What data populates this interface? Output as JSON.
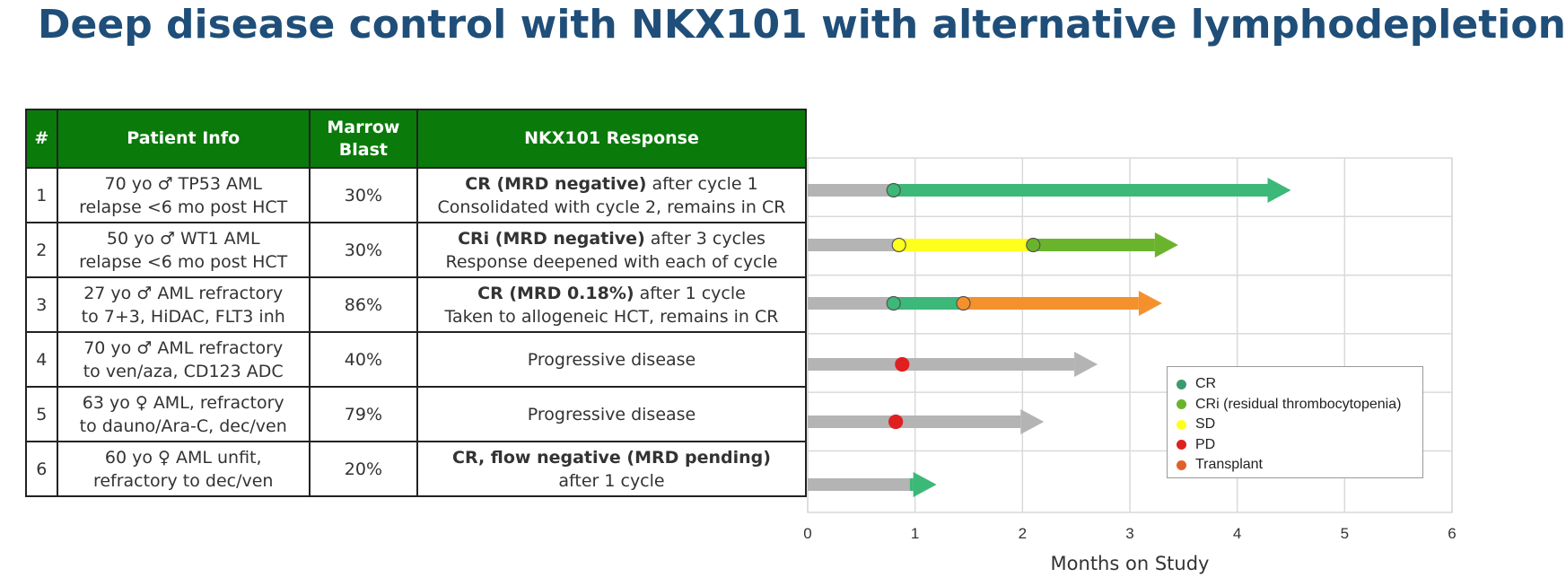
{
  "title": "Deep disease control with NKX101 with alternative lymphodepletion",
  "table": {
    "headers": {
      "num": "#",
      "info": "Patient Info",
      "blast_1": "Marrow",
      "blast_2": "Blast",
      "response": "NKX101 Response"
    },
    "rows": [
      {
        "num": "1",
        "info_1": "70 yo ♂ TP53 AML",
        "info_2": "relapse <6 mo post HCT",
        "blast": "30%",
        "resp_bold": "CR (MRD negative)",
        "resp_rest": " after cycle 1",
        "resp_2": "Consolidated with cycle 2, remains in CR"
      },
      {
        "num": "2",
        "info_1": "50 yo ♂ WT1 AML",
        "info_2": "relapse <6 mo post HCT",
        "blast": "30%",
        "resp_bold": "CRi (MRD negative)",
        "resp_rest": " after 3 cycles",
        "resp_2": "Response deepened with each of cycle"
      },
      {
        "num": "3",
        "info_1": "27 yo ♂ AML refractory",
        "info_2": "to 7+3, HiDAC, FLT3 inh",
        "blast": "86%",
        "resp_bold": "CR (MRD 0.18%)",
        "resp_rest": " after 1 cycle",
        "resp_2": "Taken to allogeneic HCT, remains in CR"
      },
      {
        "num": "4",
        "info_1": "70 yo ♂ AML refractory",
        "info_2": "to ven/aza, CD123 ADC",
        "blast": "40%",
        "resp_bold": "",
        "resp_rest": "Progressive disease",
        "resp_2": ""
      },
      {
        "num": "5",
        "info_1": "63 yo ♀ AML, refractory",
        "info_2": "to dauno/Ara-C, dec/ven",
        "blast": "79%",
        "resp_bold": "",
        "resp_rest": "Progressive disease",
        "resp_2": ""
      },
      {
        "num": "6",
        "info_1": "60 yo ♀ AML unfit,",
        "info_2": "refractory to dec/ven",
        "blast": "20%",
        "resp_bold": "CR, flow negative (MRD pending)",
        "resp_rest": "",
        "resp_2": "after 1 cycle"
      }
    ]
  },
  "chart_data": {
    "type": "swimmer",
    "xlabel": "Months on Study",
    "xlim": [
      0,
      6
    ],
    "xticks": [
      "0",
      "1",
      "2",
      "3",
      "4",
      "5",
      "6"
    ],
    "grid": true,
    "legend_position": "bottom-right",
    "colors": {
      "baseline": "#b4b4b4",
      "CR": "#3cb878",
      "CRi": "#6ab42d",
      "SD": "#ffff1e",
      "PD": "#e02020",
      "Transplant": "#f5912d"
    },
    "legend": [
      {
        "key": "CR",
        "label": "CR",
        "color": "#3c9b6e"
      },
      {
        "key": "CRi",
        "label": "CRi (residual thrombocytopenia)",
        "color": "#6ab42d"
      },
      {
        "key": "SD",
        "label": "SD",
        "color": "#ffff1e"
      },
      {
        "key": "PD",
        "label": "PD",
        "color": "#e02020"
      },
      {
        "key": "Transplant",
        "label": "Transplant",
        "color": "#e0602d"
      }
    ],
    "patients": [
      {
        "id": "1",
        "end": 4.5,
        "segments": [
          {
            "status": "baseline",
            "start": 0,
            "end": 0.8
          },
          {
            "status": "CR",
            "start": 0.8,
            "end": 4.5
          }
        ],
        "events": [
          {
            "status": "CR",
            "x": 0.8
          }
        ]
      },
      {
        "id": "2",
        "end": 3.45,
        "segments": [
          {
            "status": "baseline",
            "start": 0,
            "end": 0.85
          },
          {
            "status": "SD",
            "start": 0.85,
            "end": 2.1
          },
          {
            "status": "CRi",
            "start": 2.1,
            "end": 3.45
          }
        ],
        "events": [
          {
            "status": "SD",
            "x": 0.85
          },
          {
            "status": "CRi",
            "x": 2.1
          }
        ]
      },
      {
        "id": "3",
        "end": 3.3,
        "segments": [
          {
            "status": "baseline",
            "start": 0,
            "end": 0.8
          },
          {
            "status": "CR",
            "start": 0.8,
            "end": 1.45
          },
          {
            "status": "Transplant",
            "start": 1.45,
            "end": 3.3
          }
        ],
        "events": [
          {
            "status": "CR",
            "x": 0.8
          },
          {
            "status": "Transplant",
            "x": 1.45
          }
        ]
      },
      {
        "id": "4",
        "end": 2.7,
        "segments": [
          {
            "status": "baseline",
            "start": 0,
            "end": 2.7
          }
        ],
        "events": [
          {
            "status": "PD",
            "x": 0.88
          }
        ]
      },
      {
        "id": "5",
        "end": 2.2,
        "segments": [
          {
            "status": "baseline",
            "start": 0,
            "end": 2.2
          }
        ],
        "events": [
          {
            "status": "PD",
            "x": 0.82
          }
        ]
      },
      {
        "id": "6",
        "end": 1.2,
        "segments": [
          {
            "status": "baseline",
            "start": 0,
            "end": 0.95
          },
          {
            "status": "CR",
            "start": 0.95,
            "end": 1.2
          }
        ],
        "events": []
      }
    ]
  }
}
